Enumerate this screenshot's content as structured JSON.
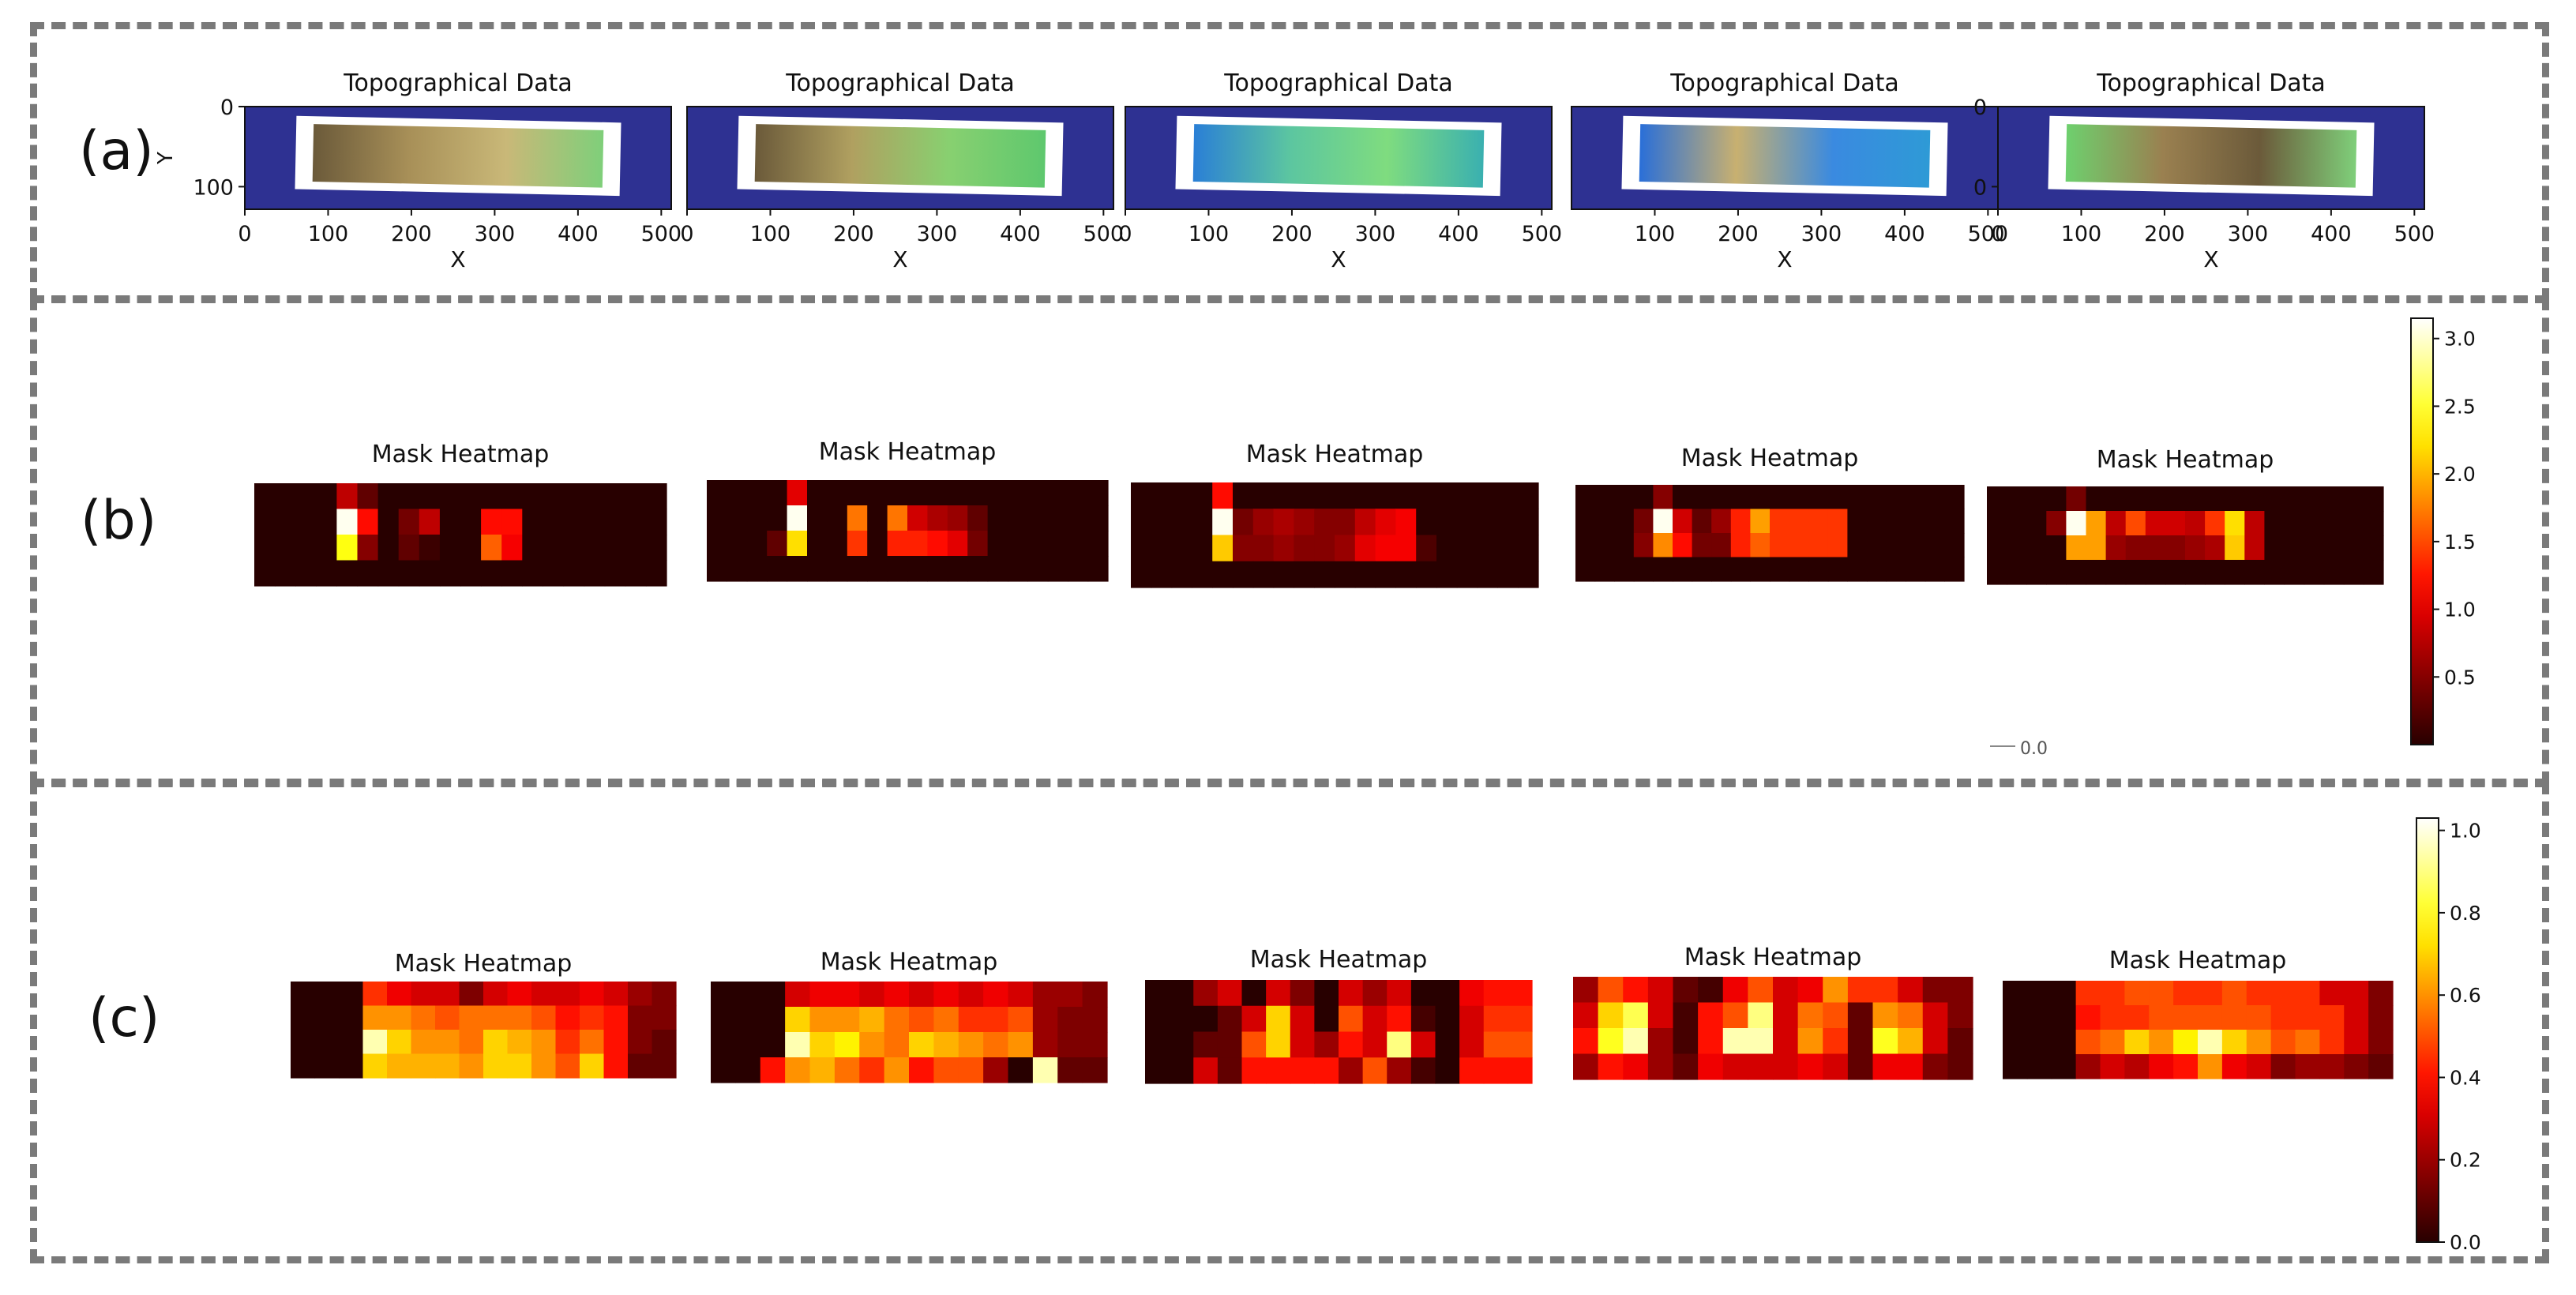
{
  "panel_labels": [
    "(a)",
    "(b)",
    "(c)"
  ],
  "chart_data": [
    {
      "type": "heatmap",
      "panel": "(a)",
      "count": 5,
      "title": "Topographical Data",
      "xlabel": "X",
      "ylabel": "Y",
      "xlim": [
        0,
        512
      ],
      "ylim": [
        128,
        0
      ],
      "x_ticks": [
        0,
        100,
        200,
        300,
        400,
        500
      ],
      "y_ticks": [
        0,
        100
      ],
      "plot_ylabels": [
        "Y",
        "",
        "",
        "",
        ""
      ],
      "plot_yticks": [
        [
          0,
          100
        ],
        [],
        [],
        [],
        [
          0,
          0
        ]
      ],
      "plot_xticks": [
        [
          0,
          100,
          200,
          300,
          400,
          500
        ],
        [
          0,
          100,
          200,
          300,
          400,
          500
        ],
        [
          0,
          100,
          200,
          300,
          400,
          500
        ],
        [
          100,
          200,
          300,
          400,
          500
        ],
        [
          0,
          100,
          200,
          300,
          400,
          500
        ]
      ],
      "background_color": "#2e3192",
      "strip_colormaps": [
        [
          "#6b5a3a",
          "#a89058",
          "#c9b878",
          "#7fcf7a"
        ],
        [
          "#6b5a3a",
          "#b0a060",
          "#88d070",
          "#5ec86e"
        ],
        [
          "#2a7fd6",
          "#5cc6a0",
          "#7fdc7f",
          "#3ab0b0"
        ],
        [
          "#2a6fd8",
          "#c8b070",
          "#3a8ae0",
          "#2e9ad6"
        ],
        [
          "#6ed06e",
          "#9a8050",
          "#6b5a3a",
          "#7fcf7a"
        ]
      ]
    },
    {
      "type": "heatmap",
      "panel": "(b)",
      "count": 5,
      "title": "Mask Heatmap",
      "colormap": "hot",
      "colorbar": {
        "min": 0.0,
        "max": 3.15,
        "ticks": [
          0.5,
          1.0,
          1.5,
          2.0,
          2.5,
          3.0
        ],
        "tick_labels": [
          "0.5",
          "1.0",
          "1.5",
          "2.0",
          "2.5",
          "3.0"
        ],
        "stray_label": "0.0"
      },
      "grids": [
        [
          [
            0,
            0,
            0,
            0,
            0.8,
            0.3,
            0,
            0,
            0,
            0,
            0,
            0,
            0,
            0,
            0,
            0,
            0,
            0,
            0,
            0
          ],
          [
            0,
            0,
            0,
            0,
            3.1,
            1.2,
            0,
            0.4,
            0.8,
            0,
            0,
            1.2,
            1.2,
            0,
            0,
            0,
            0,
            0,
            0,
            0
          ],
          [
            0,
            0,
            0,
            0,
            2.4,
            0.5,
            0,
            0.3,
            0.1,
            0,
            0,
            1.6,
            1.1,
            0,
            0,
            0,
            0,
            0,
            0,
            0
          ],
          [
            0,
            0,
            0,
            0,
            0,
            0,
            0,
            0,
            0,
            0,
            0,
            0,
            0,
            0,
            0,
            0,
            0,
            0,
            0,
            0
          ]
        ],
        [
          [
            0,
            0,
            0,
            0,
            1.0,
            0,
            0,
            0,
            0,
            0,
            0,
            0,
            0,
            0,
            0,
            0,
            0,
            0,
            0,
            0
          ],
          [
            0,
            0,
            0,
            0,
            3.1,
            0,
            0,
            1.7,
            0,
            1.7,
            0.9,
            0.7,
            0.6,
            0.3,
            0,
            0,
            0,
            0,
            0,
            0
          ],
          [
            0,
            0,
            0,
            0.3,
            2.2,
            0,
            0,
            1.4,
            0,
            1.3,
            1.3,
            1.2,
            1.0,
            0.4,
            0,
            0,
            0,
            0,
            0,
            0
          ],
          [
            0,
            0,
            0,
            0,
            0,
            0,
            0,
            0,
            0,
            0,
            0,
            0,
            0,
            0,
            0,
            0,
            0,
            0,
            0,
            0
          ]
        ],
        [
          [
            0,
            0,
            0,
            0,
            1.2,
            0,
            0,
            0,
            0,
            0,
            0,
            0,
            0,
            0,
            0,
            0,
            0,
            0,
            0,
            0
          ],
          [
            0,
            0,
            0,
            0,
            3.1,
            0.4,
            0.6,
            0.7,
            0.6,
            0.5,
            0.5,
            0.8,
            1.0,
            1.1,
            0,
            0,
            0,
            0,
            0,
            0
          ],
          [
            0,
            0,
            0,
            0,
            2.1,
            0.5,
            0.5,
            0.6,
            0.5,
            0.5,
            0.6,
            1.0,
            1.1,
            1.1,
            0.2,
            0,
            0,
            0,
            0,
            0
          ],
          [
            0,
            0,
            0,
            0,
            0,
            0,
            0,
            0,
            0,
            0,
            0,
            0,
            0,
            0,
            0,
            0,
            0,
            0,
            0,
            0
          ]
        ],
        [
          [
            0,
            0,
            0,
            0,
            0.5,
            0,
            0,
            0,
            0,
            0,
            0,
            0,
            0,
            0,
            0,
            0,
            0,
            0,
            0,
            0
          ],
          [
            0,
            0,
            0,
            0.4,
            3.1,
            0.9,
            0.3,
            0.6,
            1.3,
            1.9,
            1.4,
            1.4,
            1.4,
            1.4,
            0,
            0,
            0,
            0,
            0,
            0
          ],
          [
            0,
            0,
            0,
            0.5,
            1.8,
            1.2,
            0.4,
            0.4,
            1.3,
            1.6,
            1.4,
            1.4,
            1.4,
            1.4,
            0,
            0,
            0,
            0,
            0,
            0
          ],
          [
            0,
            0,
            0,
            0,
            0,
            0,
            0,
            0,
            0,
            0,
            0,
            0,
            0,
            0,
            0,
            0,
            0,
            0,
            0,
            0
          ]
        ],
        [
          [
            0,
            0,
            0,
            0,
            0.4,
            0,
            0,
            0,
            0,
            0,
            0,
            0,
            0,
            0,
            0,
            0,
            0,
            0,
            0,
            0
          ],
          [
            0,
            0,
            0,
            0.5,
            3.1,
            1.9,
            0.8,
            1.5,
            0.9,
            0.9,
            0.8,
            1.4,
            2.2,
            0.8,
            0,
            0,
            0,
            0,
            0,
            0
          ],
          [
            0,
            0,
            0,
            0,
            1.9,
            1.9,
            0.6,
            0.5,
            0.5,
            0.5,
            0.6,
            0.7,
            2.1,
            0.8,
            0,
            0,
            0,
            0,
            0,
            0
          ],
          [
            0,
            0,
            0,
            0,
            0,
            0,
            0,
            0,
            0,
            0,
            0,
            0,
            0,
            0,
            0,
            0,
            0,
            0,
            0,
            0
          ]
        ]
      ]
    },
    {
      "type": "heatmap",
      "panel": "(c)",
      "count": 5,
      "title": "Mask Heatmap",
      "colormap": "hot",
      "colorbar": {
        "min": 0.0,
        "max": 1.03,
        "ticks": [
          0.0,
          0.2,
          0.4,
          0.6,
          0.8,
          1.0
        ],
        "tick_labels": [
          "0.0",
          "0.2",
          "0.4",
          "0.6",
          "0.8",
          "1.0"
        ]
      },
      "grids": [
        [
          [
            0,
            0,
            0,
            0.45,
            0.35,
            0.3,
            0.3,
            0.15,
            0.3,
            0.35,
            0.3,
            0.3,
            0.35,
            0.3,
            0.2,
            0.15
          ],
          [
            0,
            0,
            0,
            0.6,
            0.6,
            0.55,
            0.5,
            0.55,
            0.55,
            0.55,
            0.5,
            0.4,
            0.45,
            0.4,
            0.15,
            0.15
          ],
          [
            0,
            0,
            0,
            0.95,
            0.7,
            0.6,
            0.6,
            0.55,
            0.7,
            0.65,
            0.6,
            0.45,
            0.55,
            0.4,
            0.15,
            0.1
          ],
          [
            0,
            0,
            0,
            0.7,
            0.65,
            0.65,
            0.65,
            0.6,
            0.7,
            0.7,
            0.6,
            0.5,
            0.7,
            0.4,
            0.1,
            0.1
          ]
        ],
        [
          [
            0,
            0,
            0,
            0.3,
            0.35,
            0.35,
            0.3,
            0.35,
            0.3,
            0.35,
            0.3,
            0.35,
            0.3,
            0.2,
            0.2,
            0.15
          ],
          [
            0,
            0,
            0,
            0.7,
            0.6,
            0.6,
            0.65,
            0.55,
            0.5,
            0.55,
            0.45,
            0.45,
            0.5,
            0.2,
            0.15,
            0.15
          ],
          [
            0,
            0,
            0,
            0.95,
            0.7,
            0.75,
            0.6,
            0.55,
            0.7,
            0.65,
            0.6,
            0.55,
            0.6,
            0.2,
            0.15,
            0.15
          ],
          [
            0,
            0,
            0.4,
            0.6,
            0.65,
            0.55,
            0.45,
            0.6,
            0.4,
            0.5,
            0.5,
            0.2,
            0.0,
            0.95,
            0.1,
            0.1
          ]
        ],
        [
          [
            0,
            0,
            0.2,
            0.3,
            0.0,
            0.3,
            0.15,
            0.0,
            0.3,
            0.2,
            0.3,
            0.0,
            0.0,
            0.35,
            0.4,
            0.4
          ],
          [
            0,
            0,
            0.0,
            0.1,
            0.3,
            0.7,
            0.3,
            0.0,
            0.5,
            0.3,
            0.4,
            0.05,
            0.0,
            0.3,
            0.45,
            0.45
          ],
          [
            0,
            0,
            0.1,
            0.1,
            0.5,
            0.7,
            0.3,
            0.2,
            0.4,
            0.3,
            0.9,
            0.3,
            0.0,
            0.3,
            0.5,
            0.5
          ],
          [
            0,
            0,
            0.3,
            0.1,
            0.4,
            0.4,
            0.4,
            0.4,
            0.2,
            0.5,
            0.2,
            0.05,
            0.0,
            0.4,
            0.4,
            0.4
          ]
        ],
        [
          [
            0.2,
            0.5,
            0.4,
            0.3,
            0.1,
            0.05,
            0.35,
            0.5,
            0.3,
            0.35,
            0.6,
            0.45,
            0.45,
            0.3,
            0.15,
            0.15
          ],
          [
            0.3,
            0.7,
            0.85,
            0.3,
            0.05,
            0.4,
            0.5,
            0.9,
            0.3,
            0.55,
            0.5,
            0.1,
            0.6,
            0.55,
            0.3,
            0.15
          ],
          [
            0.4,
            0.8,
            0.95,
            0.2,
            0.05,
            0.4,
            0.95,
            0.95,
            0.3,
            0.6,
            0.45,
            0.1,
            0.8,
            0.65,
            0.3,
            0.1
          ],
          [
            0.2,
            0.4,
            0.35,
            0.2,
            0.1,
            0.35,
            0.3,
            0.3,
            0.3,
            0.35,
            0.3,
            0.1,
            0.35,
            0.35,
            0.15,
            0.1
          ]
        ],
        [
          [
            0,
            0,
            0,
            0.45,
            0.45,
            0.5,
            0.5,
            0.45,
            0.45,
            0.5,
            0.45,
            0.45,
            0.45,
            0.3,
            0.3,
            0.15
          ],
          [
            0,
            0,
            0,
            0.4,
            0.45,
            0.45,
            0.5,
            0.5,
            0.5,
            0.5,
            0.5,
            0.45,
            0.45,
            0.45,
            0.3,
            0.15
          ],
          [
            0,
            0,
            0,
            0.5,
            0.55,
            0.7,
            0.6,
            0.75,
            0.95,
            0.7,
            0.6,
            0.5,
            0.55,
            0.45,
            0.3,
            0.15
          ],
          [
            0,
            0,
            0,
            0.2,
            0.3,
            0.25,
            0.35,
            0.4,
            0.6,
            0.35,
            0.3,
            0.15,
            0.2,
            0.2,
            0.15,
            0.1
          ]
        ]
      ]
    }
  ]
}
